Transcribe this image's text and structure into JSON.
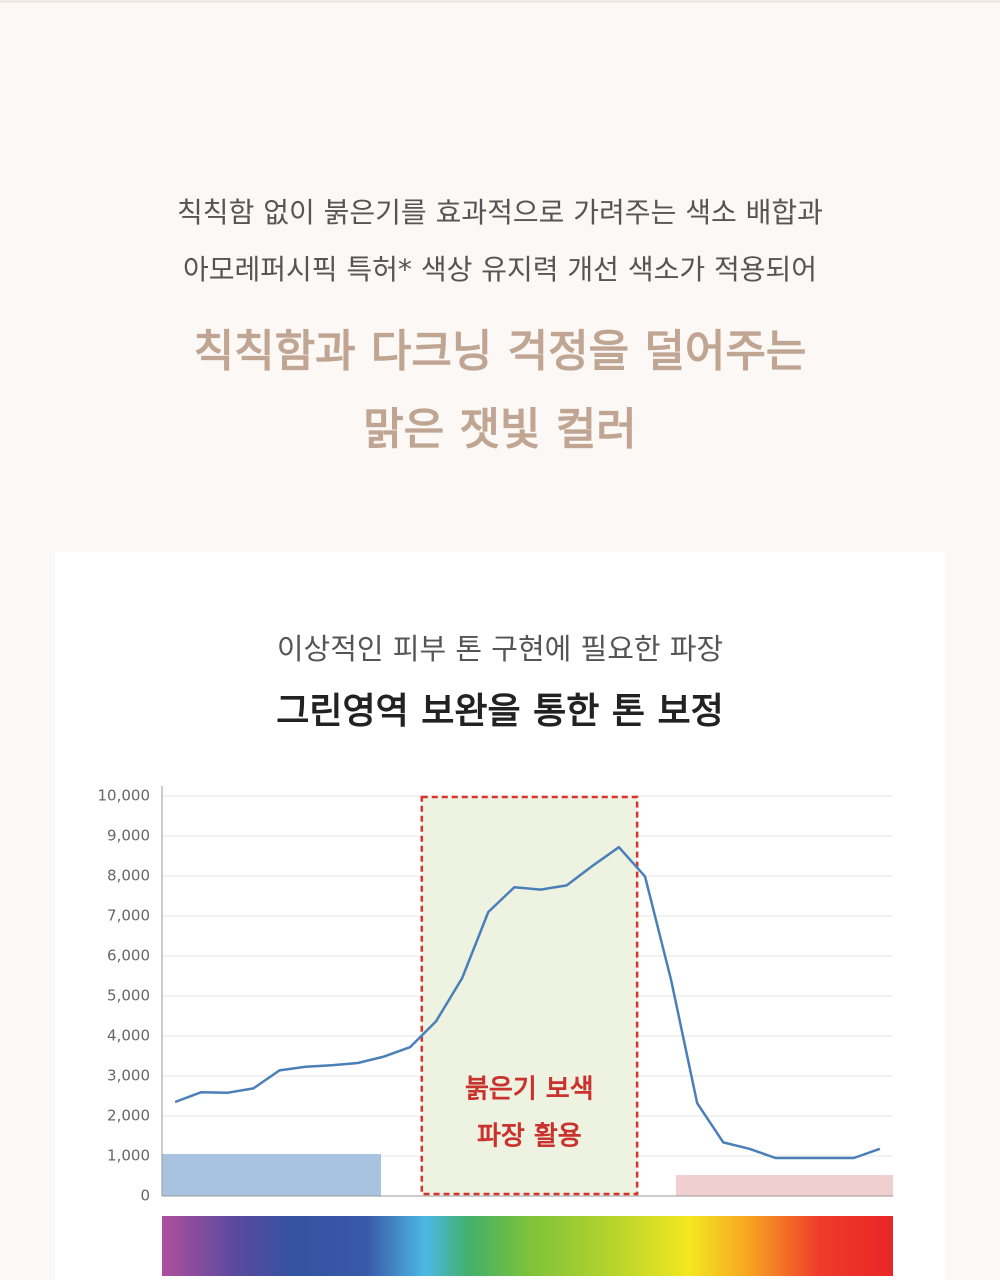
{
  "header": {
    "lines": [
      "칙칙함 없이 붉은기를 효과적으로 가려주는 색소 배합과",
      "아모레퍼시픽 특허* 색상 유지력 개선 색소가 적용되어"
    ],
    "headline": [
      "칙칙함과 다크닝 걱정을 덜어주는",
      "맑은 잿빛 컬러"
    ]
  },
  "chart_data": {
    "type": "line",
    "subtitle": "이상적인 피부 톤 구현에 필요한 파장",
    "title": "그린영역 보완을 통한 톤 보정",
    "categories": [
      null,
      null,
      null,
      null,
      null,
      null,
      null,
      null,
      null,
      null,
      null,
      null,
      null,
      null,
      null,
      null,
      null,
      null,
      null,
      null,
      null,
      null,
      null,
      null,
      null,
      null,
      null,
      null
    ],
    "series": [
      {
        "color": "#4a7fb8",
        "values": [
          2350,
          2595,
          2580,
          2690,
          3140,
          3230,
          3270,
          3325,
          3485,
          3720,
          4370,
          5450,
          7100,
          7720,
          7660,
          7765,
          8260,
          8720,
          7990,
          5400,
          2320,
          1340,
          1180,
          950,
          950,
          950,
          950,
          1180
        ]
      }
    ],
    "bands": [
      {
        "color": "#a8c3e0",
        "value": 1050
      },
      {
        "color": "#f1cfd0",
        "value": 525
      }
    ],
    "annotation": [
      "붉은기 보색",
      "파장 활용"
    ],
    "ylim": [
      0,
      10000
    ],
    "yticks": [
      0,
      {
        "value": 1000,
        "label": "1,000"
      },
      {
        "value": 2000,
        "label": "2,000"
      },
      {
        "value": 3000,
        "label": "3,000"
      },
      {
        "value": 4000,
        "label": "4,000"
      },
      {
        "value": 5000,
        "label": "5,000"
      },
      {
        "value": 6000,
        "label": "6,000"
      },
      {
        "value": 7000,
        "label": "7,000"
      },
      {
        "value": 8000,
        "label": "8,000"
      },
      {
        "value": 9000,
        "label": "9,000"
      },
      {
        "value": 10000,
        "label": "10,000"
      }
    ],
    "grid": true
  }
}
